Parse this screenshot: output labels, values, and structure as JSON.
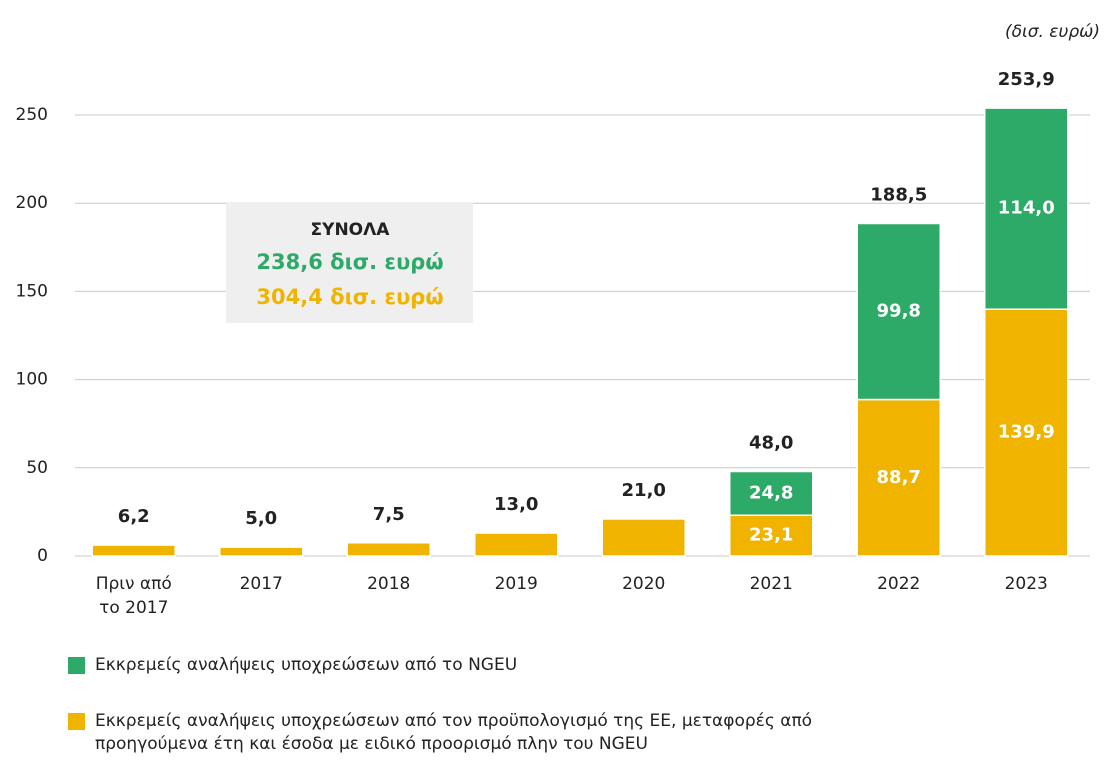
{
  "chart_data": {
    "type": "stacked_bar",
    "unit_label": "(δισ. ευρώ)",
    "categories": [
      "Πριν από\nτο 2017",
      "2017",
      "2018",
      "2019",
      "2020",
      "2021",
      "2022",
      "2023"
    ],
    "series": [
      {
        "name": "Εκκρεμείς αναλήψεις υποχρεώσεων από τον προϋπολογισμό της ΕΕ, μεταφορές από προηγούμενα έτη και έσοδα με ειδικό προορισμό πλην του NGEU",
        "color": "#f0b400",
        "values": [
          6.2,
          5.0,
          7.5,
          13.0,
          21.0,
          23.1,
          88.7,
          139.9
        ],
        "value_labels": [
          null,
          null,
          null,
          null,
          null,
          "23,1",
          "88,7",
          "139,9"
        ]
      },
      {
        "name": "Εκκρεμείς αναλήψεις υποχρεώσεων από το NGEU",
        "color": "#2eaa68",
        "values": [
          null,
          null,
          null,
          null,
          null,
          24.8,
          99.8,
          114.0
        ],
        "value_labels": [
          null,
          null,
          null,
          null,
          null,
          "24,8",
          "99,8",
          "114,0"
        ]
      }
    ],
    "totals": [
      6.2,
      5.0,
      7.5,
      13.0,
      21.0,
      48.0,
      188.5,
      253.9
    ],
    "total_labels": [
      "6,2",
      "5,0",
      "7,5",
      "13,0",
      "21,0",
      "48,0",
      "188,5",
      "253,9"
    ],
    "summary_box": {
      "title": "ΣΥΝΟΛΑ",
      "green_total": "238,6 δισ. ευρώ",
      "yellow_total": "304,4 δισ. ευρώ"
    },
    "ylim": [
      0,
      250
    ],
    "yticks": [
      0,
      50,
      100,
      150,
      200,
      250
    ],
    "grid": true
  }
}
